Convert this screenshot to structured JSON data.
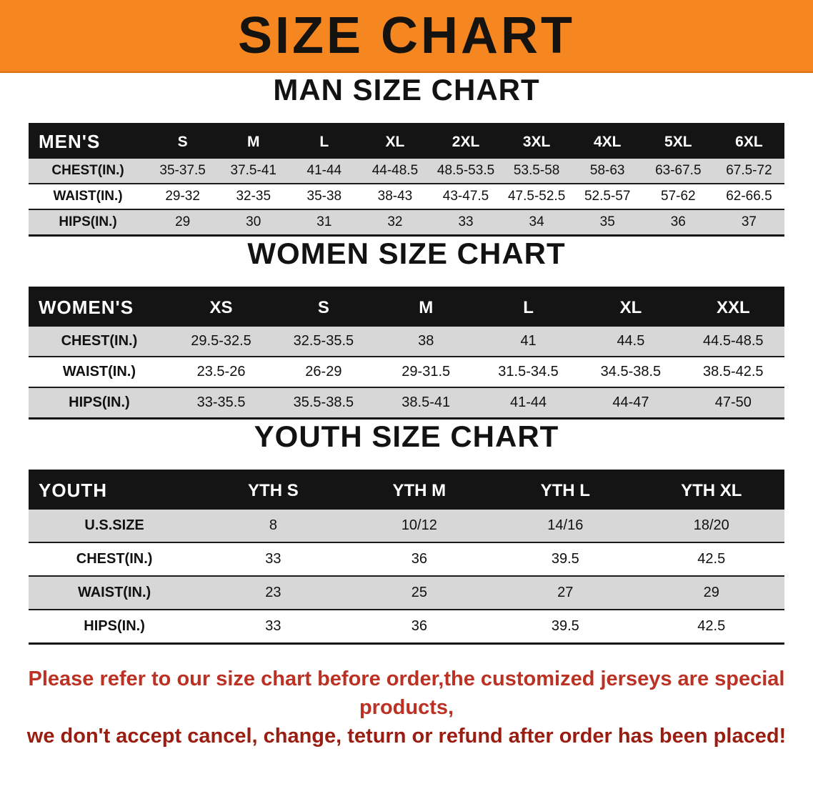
{
  "colors": {
    "banner-bg": "#F6861F",
    "header-bg": "#141414",
    "header-text": "#FFFFFF",
    "row-alt-bg": "#D7D7D7",
    "footer-red-1": "#BB3224",
    "footer-red-2": "#9A1D12",
    "text": "#111111"
  },
  "banner": {
    "title": "SIZE CHART"
  },
  "men": {
    "heading": "MAN SIZE CHART",
    "columns": [
      "MEN'S",
      "S",
      "M",
      "L",
      "XL",
      "2XL",
      "3XL",
      "4XL",
      "5XL",
      "6XL"
    ],
    "rows": [
      {
        "label": "CHEST(IN.)",
        "values": [
          "35-37.5",
          "37.5-41",
          "41-44",
          "44-48.5",
          "48.5-53.5",
          "53.5-58",
          "58-63",
          "63-67.5",
          "67.5-72"
        ]
      },
      {
        "label": "WAIST(IN.)",
        "values": [
          "29-32",
          "32-35",
          "35-38",
          "38-43",
          "43-47.5",
          "47.5-52.5",
          "52.5-57",
          "57-62",
          "62-66.5"
        ]
      },
      {
        "label": "HIPS(IN.)",
        "values": [
          "29",
          "30",
          "31",
          "32",
          "33",
          "34",
          "35",
          "36",
          "37"
        ]
      }
    ]
  },
  "women": {
    "heading": "WOMEN SIZE CHART",
    "columns": [
      "WOMEN'S",
      "XS",
      "S",
      "M",
      "L",
      "XL",
      "XXL"
    ],
    "rows": [
      {
        "label": "CHEST(IN.)",
        "values": [
          "29.5-32.5",
          "32.5-35.5",
          "38",
          "41",
          "44.5",
          "44.5-48.5"
        ]
      },
      {
        "label": "WAIST(IN.)",
        "values": [
          "23.5-26",
          "26-29",
          "29-31.5",
          "31.5-34.5",
          "34.5-38.5",
          "38.5-42.5"
        ]
      },
      {
        "label": "HIPS(IN.)",
        "values": [
          "33-35.5",
          "35.5-38.5",
          "38.5-41",
          "41-44",
          "44-47",
          "47-50"
        ]
      }
    ]
  },
  "youth": {
    "heading": "YOUTH SIZE CHART",
    "columns": [
      "YOUTH",
      "YTH S",
      "YTH M",
      "YTH L",
      "YTH XL"
    ],
    "rows": [
      {
        "label": "U.S.SIZE",
        "values": [
          "8",
          "10/12",
          "14/16",
          "18/20"
        ]
      },
      {
        "label": "CHEST(IN.)",
        "values": [
          "33",
          "36",
          "39.5",
          "42.5"
        ]
      },
      {
        "label": "WAIST(IN.)",
        "values": [
          "23",
          "25",
          "27",
          "29"
        ]
      },
      {
        "label": "HIPS(IN.)",
        "values": [
          "33",
          "36",
          "39.5",
          "42.5"
        ]
      }
    ]
  },
  "footer": {
    "line1": "Please refer to our size chart before order,the customized jerseys are special products,",
    "line2": "we don't accept cancel, change, teturn or refund after order has been placed!"
  }
}
